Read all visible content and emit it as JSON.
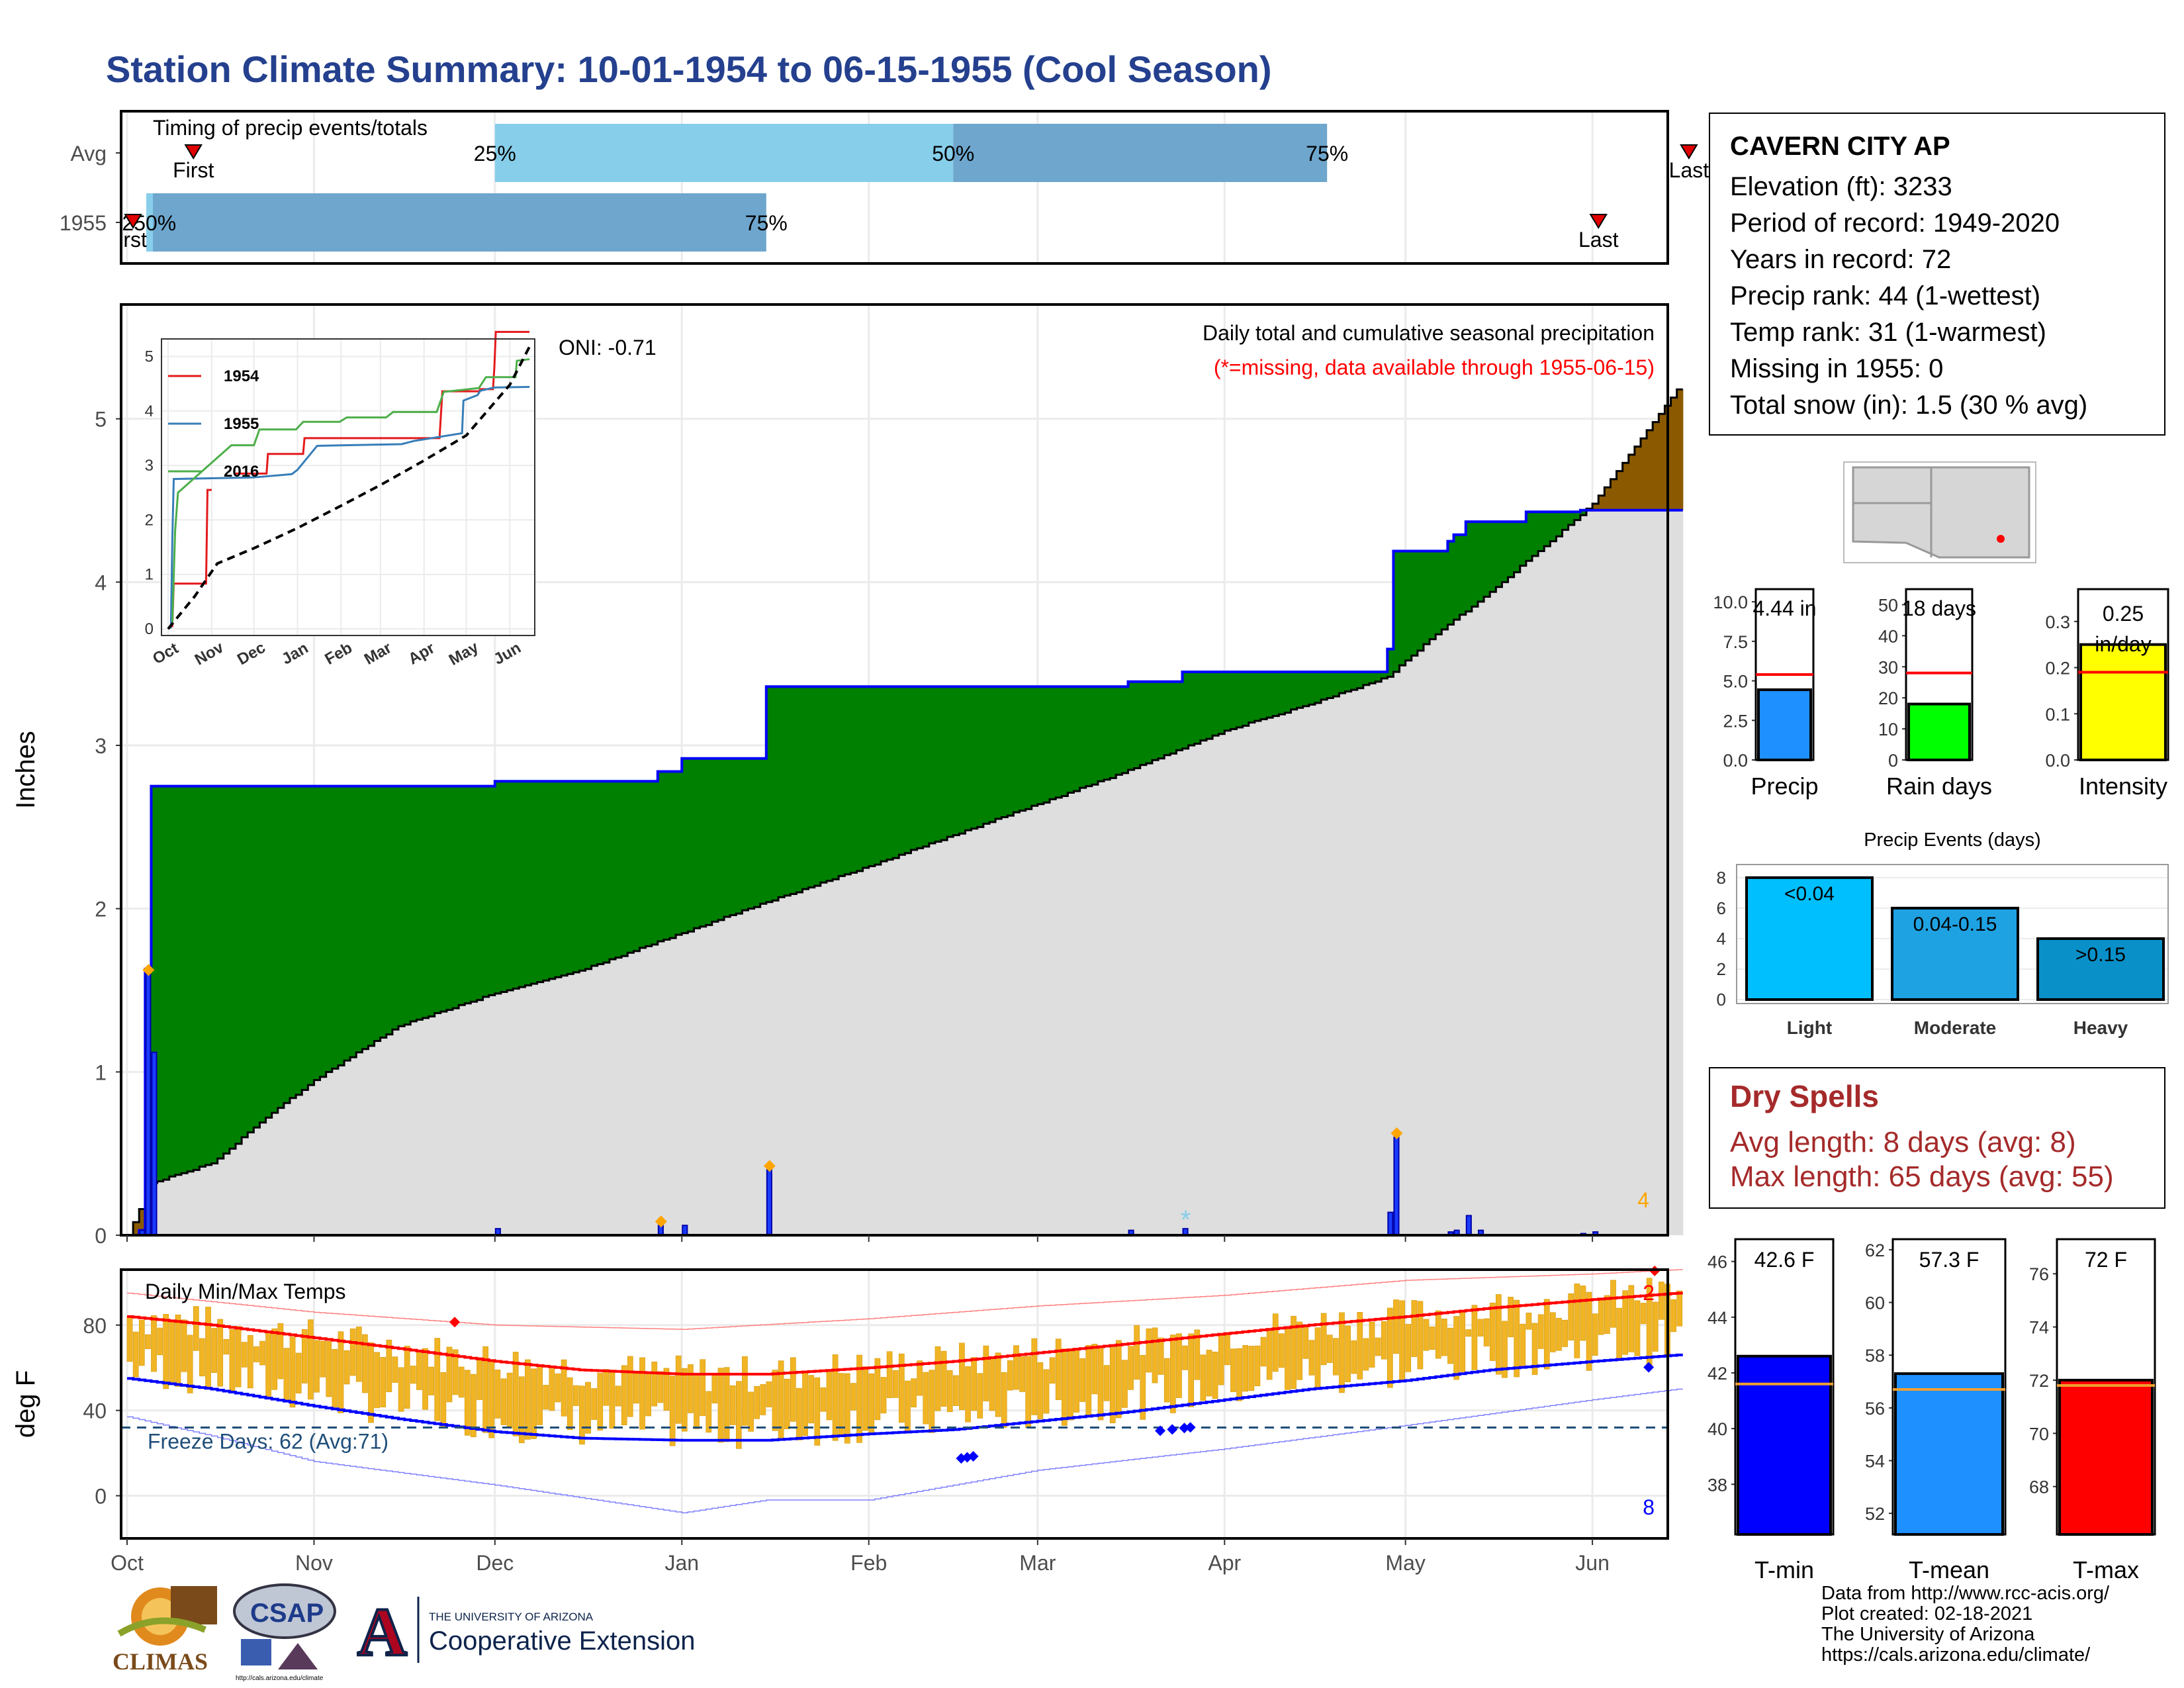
{
  "page": {
    "title": "Station Climate Summary: 10-01-1954 to 06-15-1955 (Cool Season)"
  },
  "station": {
    "name": "CAVERN CITY AP",
    "lines": [
      "Elevation (ft): 3233",
      "Period of record: 1949-2020",
      "Years in record: 72",
      "Precip rank: 44 (1-wettest)",
      "Temp rank: 31 (1-warmest)",
      "Missing in 1955: 0",
      "Total snow (in): 1.5 (30 % avg)"
    ]
  },
  "dry_spells": {
    "title": "Dry Spells",
    "avg_length": "Avg length: 8 days (avg: 8)",
    "max_length": "Max length: 65 days (avg: 55)"
  },
  "credits": {
    "lines": [
      "Data from http://www.rcc-acis.org/",
      "Plot created: 02-18-2021",
      "The University of Arizona",
      "https://cals.arizona.edu/climate/"
    ]
  },
  "logos": {
    "climas": "CLIMAS",
    "csap": "CSAP",
    "csap_url": "http://cals.arizona.edu/climate",
    "ua_small": "THE UNIVERSITY OF ARIZONA",
    "ua_ext": "Cooperative Extension",
    "ua_letter": "A"
  },
  "colors": {
    "title": "#24408e",
    "precip_blue": "#1a3cff",
    "green_surplus": "#008000",
    "brown_deficit": "#8b5a00",
    "gray_normal": "#dedede",
    "temp_bar": "#f0b424",
    "tmax_line": "#ff0000",
    "tmin_line": "#0000ff",
    "light": "#00bfff",
    "moderate": "#1fa2e2",
    "heavy": "#0990c8",
    "dry_spell": "#a52a2a"
  },
  "chart_data": [
    {
      "id": "timing",
      "type": "bar",
      "title": "Timing of precip events/totals",
      "rows": [
        "Avg",
        "1955"
      ],
      "months": [
        "Oct",
        "Nov",
        "Dec",
        "Jan",
        "Feb",
        "Mar",
        "Apr",
        "May",
        "Jun"
      ],
      "avg": {
        "first": "1954-10-12",
        "p25": "1954-12-01",
        "p50": "1955-02-15",
        "p75": "1955-04-18",
        "last": "1955-06-17"
      },
      "year": {
        "first": "1954-10-02",
        "p25": "1954-10-04",
        "p50": "1954-10-04",
        "p75": "1955-01-15",
        "last": "1955-06-02"
      },
      "labels": {
        "first": "First",
        "last": "Last",
        "p25": "25%",
        "p50": "50%",
        "p75": "75%",
        "year_first": "rst",
        "year_overlap": "250%"
      }
    },
    {
      "id": "precip",
      "type": "area",
      "title": "Daily total and cumulative seasonal precipitation",
      "subtitle": "(*=missing, data available through 1955-06-15)",
      "ylabel": "Inches",
      "ylim": [
        0,
        5.7
      ],
      "yticks": [
        0,
        1,
        2,
        3,
        4,
        5
      ],
      "oni": "ONI: -0.71",
      "corner_count": "4",
      "observed_cumulative_steps": [
        [
          "1954-10-01",
          0.0
        ],
        [
          "1954-10-03",
          0.03
        ],
        [
          "1954-10-04",
          1.63
        ],
        [
          "1954-10-05",
          2.75
        ],
        [
          "1954-12-01",
          2.78
        ],
        [
          "1954-12-28",
          2.84
        ],
        [
          "1955-01-01",
          2.92
        ],
        [
          "1955-01-15",
          3.36
        ],
        [
          "1955-03-16",
          3.39
        ],
        [
          "1955-03-25",
          3.45
        ],
        [
          "1955-04-28",
          3.59
        ],
        [
          "1955-04-29",
          4.19
        ],
        [
          "1955-05-08",
          4.25
        ],
        [
          "1955-05-09",
          4.29
        ],
        [
          "1955-05-11",
          4.37
        ],
        [
          "1955-05-21",
          4.43
        ],
        [
          "1955-05-30",
          4.44
        ],
        [
          "1955-06-15",
          4.44
        ]
      ],
      "normal_cumulative": [
        [
          "1954-10-01",
          0.0
        ],
        [
          "1954-10-05",
          0.32
        ],
        [
          "1954-10-15",
          0.44
        ],
        [
          "1954-10-25",
          0.75
        ],
        [
          "1954-11-01",
          0.95
        ],
        [
          "1954-11-15",
          1.28
        ],
        [
          "1954-12-01",
          1.48
        ],
        [
          "1954-12-15",
          1.62
        ],
        [
          "1955-01-01",
          1.85
        ],
        [
          "1955-01-15",
          2.04
        ],
        [
          "1955-02-01",
          2.26
        ],
        [
          "1955-02-15",
          2.45
        ],
        [
          "1955-03-01",
          2.64
        ],
        [
          "1955-03-15",
          2.83
        ],
        [
          "1955-04-01",
          3.09
        ],
        [
          "1955-04-15",
          3.25
        ],
        [
          "1955-04-28",
          3.42
        ],
        [
          "1955-05-05",
          3.65
        ],
        [
          "1955-05-15",
          3.94
        ],
        [
          "1955-05-25",
          4.25
        ],
        [
          "1955-06-01",
          4.48
        ],
        [
          "1955-06-08",
          4.83
        ],
        [
          "1955-06-15",
          5.18
        ]
      ],
      "daily_precip": [
        [
          "1954-10-03",
          0.03
        ],
        [
          "1954-10-04",
          1.6
        ],
        [
          "1954-10-05",
          1.12
        ],
        [
          "1954-12-01",
          0.04
        ],
        [
          "1954-12-28",
          0.06
        ],
        [
          "1955-01-01",
          0.06
        ],
        [
          "1955-01-15",
          0.4
        ],
        [
          "1955-03-16",
          0.03
        ],
        [
          "1955-03-25",
          0.04
        ],
        [
          "1955-04-28",
          0.14
        ],
        [
          "1955-04-29",
          0.6
        ],
        [
          "1955-05-08",
          0.02
        ],
        [
          "1955-05-09",
          0.03
        ],
        [
          "1955-05-11",
          0.12
        ],
        [
          "1955-05-13",
          0.03
        ],
        [
          "1955-05-30",
          0.01
        ],
        [
          "1955-06-01",
          0.02
        ]
      ],
      "snow_markers": [
        "1954-10-04",
        "1954-12-28",
        "1955-01-15",
        "1955-04-29"
      ],
      "missing_markers": [
        "1955-03-25"
      ]
    },
    {
      "id": "inset",
      "type": "line",
      "ylim": [
        0,
        5.2
      ],
      "yticks": [
        0,
        1,
        2,
        3,
        4,
        5
      ],
      "xticks": [
        "Oct",
        "Nov",
        "Dec",
        "Jan",
        "Feb",
        "Mar",
        "Apr",
        "May",
        "Jun"
      ],
      "series": [
        {
          "name": "1954",
          "color": "#e41a1c",
          "points": [
            [
              "1954-10-01",
              0
            ],
            [
              "1954-10-04",
              0.05
            ],
            [
              "1954-10-05",
              0.83
            ],
            [
              "1954-10-28",
              0.83
            ],
            [
              "1954-10-29",
              2.55
            ],
            [
              "1954-11-01",
              2.55
            ],
            [
              "1954-11-01",
              2.55
            ]
          ]
        },
        {
          "name": "1954 (cont)",
          "color": "#e41a1c",
          "points": [
            [
              "1954-11-18",
              2.85
            ],
            [
              "1954-12-10",
              2.85
            ],
            [
              "1954-12-11",
              3.21
            ],
            [
              "1955-01-05",
              3.21
            ],
            [
              "1955-01-06",
              3.5
            ],
            [
              "1955-02-10",
              3.5
            ],
            [
              "1955-04-12",
              3.5
            ],
            [
              "1955-04-14",
              4.36
            ],
            [
              "1955-05-10",
              4.36
            ],
            [
              "1955-05-11",
              4.4
            ],
            [
              "1955-05-20",
              4.4
            ],
            [
              "1955-05-21",
              4.8
            ],
            [
              "1955-05-22",
              5.45
            ],
            [
              "1955-06-15",
              5.45
            ]
          ]
        },
        {
          "name": "1955",
          "color": "#377eb8",
          "points": [
            [
              "1954-10-01",
              0
            ],
            [
              "1954-10-03",
              0.03
            ],
            [
              "1954-10-04",
              1.63
            ],
            [
              "1954-10-05",
              2.75
            ],
            [
              "1954-12-01",
              2.78
            ],
            [
              "1954-12-28",
              2.84
            ],
            [
              "1955-01-01",
              2.92
            ],
            [
              "1955-01-15",
              3.36
            ],
            [
              "1955-03-16",
              3.39
            ],
            [
              "1955-03-25",
              3.45
            ],
            [
              "1955-04-28",
              3.59
            ],
            [
              "1955-04-29",
              4.19
            ],
            [
              "1955-05-09",
              4.29
            ],
            [
              "1955-05-11",
              4.37
            ],
            [
              "1955-05-21",
              4.43
            ],
            [
              "1955-06-15",
              4.44
            ]
          ]
        },
        {
          "name": "2016",
          "color": "#4daf4a",
          "points": [
            [
              "1954-10-01",
              0
            ],
            [
              "1954-10-04",
              0.1
            ],
            [
              "1954-10-06",
              1.8
            ],
            [
              "1954-10-08",
              2.5
            ],
            [
              "1954-11-15",
              3.37
            ],
            [
              "1954-12-01",
              3.37
            ],
            [
              "1954-12-05",
              3.66
            ],
            [
              "1954-12-31",
              3.66
            ],
            [
              "1955-01-05",
              3.8
            ],
            [
              "1955-01-31",
              3.8
            ],
            [
              "1955-02-05",
              3.88
            ],
            [
              "1955-03-05",
              3.88
            ],
            [
              "1955-03-10",
              3.98
            ],
            [
              "1955-04-10",
              3.98
            ],
            [
              "1955-04-15",
              4.35
            ],
            [
              "1955-05-10",
              4.42
            ],
            [
              "1955-05-15",
              4.62
            ],
            [
              "1955-06-05",
              4.62
            ],
            [
              "1955-06-06",
              4.92
            ],
            [
              "1955-06-15",
              4.95
            ]
          ]
        },
        {
          "name": "normal",
          "color": "#000000",
          "dashed": true,
          "points": [
            [
              "1954-10-01",
              0
            ],
            [
              "1954-10-20",
              0.6
            ],
            [
              "1954-11-05",
              1.2
            ],
            [
              "1954-12-01",
              1.48
            ],
            [
              "1955-01-01",
              1.85
            ],
            [
              "1955-02-01",
              2.26
            ],
            [
              "1955-03-01",
              2.64
            ],
            [
              "1955-04-01",
              3.09
            ],
            [
              "1955-05-01",
              3.55
            ],
            [
              "1955-06-01",
              4.48
            ],
            [
              "1955-06-15",
              5.18
            ]
          ]
        }
      ]
    },
    {
      "id": "temps",
      "type": "bar",
      "title": "Daily Min/Max Temps",
      "ylabel": "deg F",
      "ylim": [
        -20,
        106
      ],
      "yticks": [
        0,
        40,
        80
      ],
      "xticks": [
        "Oct",
        "Nov",
        "Dec",
        "Jan",
        "Feb",
        "Mar",
        "Apr",
        "May",
        "Jun"
      ],
      "freeze_line": 32,
      "freeze_label": "Freeze Days: 62 (Avg:71)",
      "record_high_count": "2",
      "record_low_count": "8",
      "normal_max": [
        [
          "1954-10-01",
          84
        ],
        [
          "1954-10-15",
          80
        ],
        [
          "1954-11-01",
          74
        ],
        [
          "1954-11-15",
          69
        ],
        [
          "1954-12-01",
          63
        ],
        [
          "1954-12-15",
          59
        ],
        [
          "1955-01-01",
          57
        ],
        [
          "1955-01-15",
          57
        ],
        [
          "1955-02-01",
          60
        ],
        [
          "1955-02-15",
          63
        ],
        [
          "1955-03-01",
          67
        ],
        [
          "1955-03-15",
          71
        ],
        [
          "1955-04-01",
          76
        ],
        [
          "1955-04-15",
          80
        ],
        [
          "1955-05-01",
          84
        ],
        [
          "1955-05-15",
          88
        ],
        [
          "1955-06-01",
          92
        ],
        [
          "1955-06-15",
          95
        ]
      ],
      "normal_min": [
        [
          "1954-10-01",
          55
        ],
        [
          "1954-10-15",
          50
        ],
        [
          "1954-11-01",
          42
        ],
        [
          "1954-11-15",
          36
        ],
        [
          "1954-12-01",
          30
        ],
        [
          "1954-12-15",
          27
        ],
        [
          "1955-01-01",
          26
        ],
        [
          "1955-01-15",
          26
        ],
        [
          "1955-02-01",
          29
        ],
        [
          "1955-02-15",
          31
        ],
        [
          "1955-03-01",
          35
        ],
        [
          "1955-03-15",
          39
        ],
        [
          "1955-04-01",
          45
        ],
        [
          "1955-04-15",
          50
        ],
        [
          "1955-05-01",
          54
        ],
        [
          "1955-05-15",
          59
        ],
        [
          "1955-06-01",
          63
        ],
        [
          "1955-06-15",
          66
        ]
      ],
      "record_max": [
        [
          "1954-10-01",
          95
        ],
        [
          "1954-11-01",
          86
        ],
        [
          "1954-12-01",
          80
        ],
        [
          "1955-01-01",
          78
        ],
        [
          "1955-02-01",
          83
        ],
        [
          "1955-03-01",
          89
        ],
        [
          "1955-04-01",
          94
        ],
        [
          "1955-05-01",
          101
        ],
        [
          "1955-06-01",
          104
        ],
        [
          "1955-06-15",
          106
        ]
      ],
      "record_min": [
        [
          "1954-10-01",
          37
        ],
        [
          "1954-10-15",
          28
        ],
        [
          "1954-11-01",
          16
        ],
        [
          "1954-12-01",
          5
        ],
        [
          "1955-01-01",
          -8
        ],
        [
          "1955-01-15",
          -2
        ],
        [
          "1955-02-01",
          -2
        ],
        [
          "1955-03-01",
          12
        ],
        [
          "1955-04-01",
          22
        ],
        [
          "1955-05-01",
          33
        ],
        [
          "1955-06-01",
          45
        ],
        [
          "1955-06-15",
          50
        ]
      ],
      "record_high_days": [
        "1954-11-24",
        "1955-06-11"
      ],
      "record_low_days": [
        "1955-02-16",
        "1955-02-17",
        "1955-02-18",
        "1955-03-21",
        "1955-03-23",
        "1955-03-25",
        "1955-03-26",
        "1955-06-10"
      ]
    },
    {
      "id": "summary_bars",
      "type": "bar",
      "panels": [
        {
          "category": "Precip",
          "value": 4.44,
          "avg": 5.4,
          "label": "4.44 in",
          "ylim": [
            0,
            10.8
          ],
          "yticks": [
            "0.0",
            "2.5",
            "5.0",
            "7.5",
            "10.0"
          ],
          "tickvals": [
            0,
            2.5,
            5,
            7.5,
            10
          ],
          "color": "#1e90ff"
        },
        {
          "category": "Rain days",
          "value": 18,
          "avg": 28,
          "label": "18 days",
          "ylim": [
            0,
            55
          ],
          "yticks": [
            "0",
            "10",
            "20",
            "30",
            "40",
            "50"
          ],
          "tickvals": [
            0,
            10,
            20,
            30,
            40,
            50
          ],
          "color": "#00ff00"
        },
        {
          "category": "Intensity",
          "value": 0.25,
          "avg": 0.19,
          "label": "0.25 in/day",
          "ylim": [
            0,
            0.37
          ],
          "yticks": [
            "0.0",
            "0.1",
            "0.2",
            "0.3"
          ],
          "tickvals": [
            0,
            0.1,
            0.2,
            0.3
          ],
          "color": "#ffff00"
        }
      ]
    },
    {
      "id": "precip_events",
      "type": "bar",
      "title": "Precip Events (days)",
      "categories": [
        "Light",
        "Moderate",
        "Heavy"
      ],
      "bar_labels": [
        "<0.04",
        "0.04-0.15",
        ">0.15"
      ],
      "values": [
        8,
        6,
        4
      ],
      "ylim": [
        0,
        8.6
      ],
      "yticks": [
        0,
        2,
        4,
        6,
        8
      ]
    },
    {
      "id": "temp_summary",
      "type": "bar",
      "panels": [
        {
          "category": "T-min",
          "value": 42.6,
          "avg": 41.6,
          "label": "42.6 F",
          "ylim": [
            36.2,
            46.8
          ],
          "yticks": [
            38,
            40,
            42,
            44,
            46
          ],
          "color": "#0000ff"
        },
        {
          "category": "T-mean",
          "value": 57.3,
          "avg": 56.7,
          "label": "57.3 F",
          "ylim": [
            51.2,
            62.4
          ],
          "yticks": [
            52,
            54,
            56,
            58,
            60,
            62
          ],
          "color": "#1e90ff"
        },
        {
          "category": "T-max",
          "value": 72.0,
          "avg": 71.8,
          "label": "72 F",
          "ylim": [
            66.2,
            77.3
          ],
          "yticks": [
            68,
            70,
            72,
            74,
            76
          ],
          "color": "#ff0000"
        }
      ]
    }
  ]
}
